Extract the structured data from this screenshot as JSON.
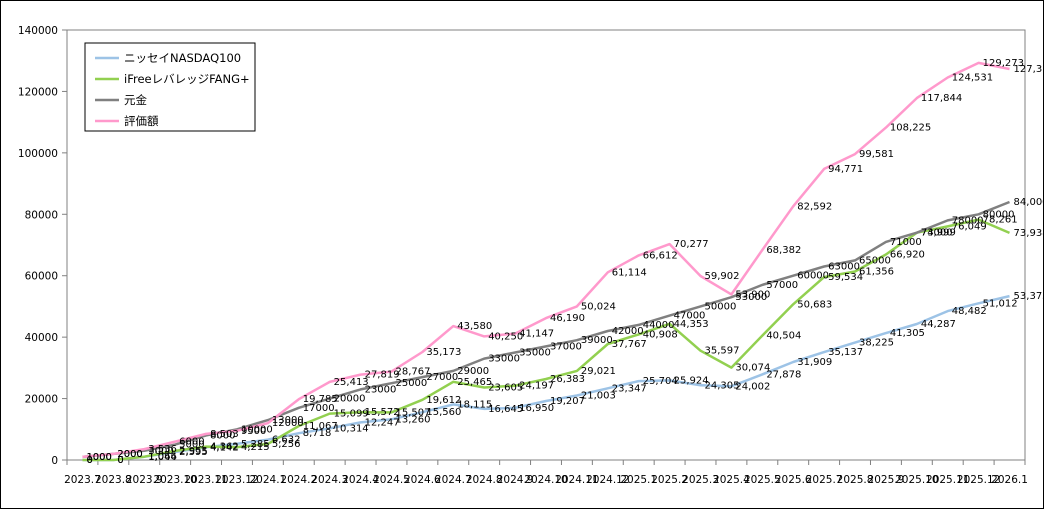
{
  "chart_data": {
    "type": "line",
    "title": "",
    "xlabel": "",
    "ylabel": "",
    "ylim": [
      0,
      140000
    ],
    "yticks": [
      0,
      20000,
      40000,
      60000,
      80000,
      100000,
      120000,
      140000
    ],
    "grid": false,
    "legend_position": "top-left",
    "categories": [
      "2023.7",
      "2023.8",
      "2023.9",
      "2023.10",
      "2023.11",
      "2023.12",
      "2024.1",
      "2024.2",
      "2024.3",
      "2024.4",
      "2024.5",
      "2024.6",
      "2024.7",
      "2024.8",
      "2024.9",
      "2024.10",
      "2024.11",
      "2024.12",
      "2025.1",
      "2025.2",
      "2025.3",
      "2025.4",
      "2025.5",
      "2025.6",
      "2025.7",
      "2025.8",
      "2025.9",
      "2025.10",
      "2025.11",
      "2025.12",
      "2026.1"
    ],
    "x_tick_labels": [
      "2023.7",
      "2023.8",
      "2023.9",
      "2023.10",
      "2023.11",
      "2023.12",
      "2024.1",
      "2024.2",
      "2024.3",
      "2024.4",
      "2024.5",
      "2024.6",
      "2024.7",
      "2024.8",
      "2024.9",
      "2024.10",
      "2024.11",
      "2024.12",
      "2025.1",
      "2025.2",
      "2025.3",
      "2025.4",
      "2025.5",
      "2025.6",
      "2025.7",
      "2025.8",
      "2025.9",
      "2025.10",
      "2025.11",
      "2025.12",
      "2026.1"
    ],
    "series": [
      {
        "name": "ニッセイNASDAQ100",
        "color": "#9dc3e6",
        "values": [
          0,
          0,
          1044,
          2595,
          4142,
          5285,
          6632,
          8718,
          10314,
          12247,
          13260,
          15560,
          18115,
          16645,
          16950,
          19207,
          21003,
          23347,
          25704,
          25924,
          24305,
          24002,
          27878,
          31909,
          35137,
          38225,
          41305,
          44287,
          48482,
          51012,
          53375
        ],
        "labels": [
          "0",
          "0",
          "1,044",
          "2,595",
          "4,142",
          "5,285",
          "6,632",
          "8,718",
          "10,314",
          "12,247",
          "13,260",
          "15,560",
          "18,115",
          "16,645",
          "16,950",
          "19,207",
          "21,003",
          "23,347",
          "25,704",
          "25,924",
          "24,305",
          "24,002",
          "27,878",
          "31,909",
          "35,137",
          "38,225",
          "41,305",
          "44,287",
          "48,482",
          "51,012",
          "53,375"
        ]
      },
      {
        "name": "iFreeレバレッジFANG+",
        "color": "#92d050",
        "values": [
          0,
          0,
          1066,
          2955,
          4362,
          4215,
          5256,
          11067,
          15099,
          15572,
          15507,
          19612,
          25465,
          23605,
          24197,
          26383,
          29021,
          37767,
          40908,
          44353,
          35597,
          30074,
          40504,
          50683,
          59534,
          61356,
          66920,
          73999,
          76049,
          78261,
          73938
        ],
        "labels": [
          "0",
          "0",
          "1,066",
          "2,955",
          "4,362",
          "4,215",
          "5,256",
          "11,067",
          "15,099",
          "15,572",
          "15,507",
          "19,612",
          "25,465",
          "23,605",
          "24,197",
          "26,383",
          "29,021",
          "37,767",
          "40,908",
          "44,353",
          "35,597",
          "30,074",
          "40,504",
          "50,683",
          "59,534",
          "61,356",
          "66,920",
          "73,999",
          "76,049",
          "78,261",
          "73,938"
        ]
      },
      {
        "name": "元金",
        "color": "#808080",
        "values": [
          1000,
          2000,
          3000,
          5000,
          8000,
          10000,
          13000,
          17000,
          20000,
          23000,
          25000,
          27000,
          29000,
          33000,
          35000,
          37000,
          39000,
          42000,
          44000,
          47000,
          50000,
          53000,
          57000,
          60000,
          63000,
          65000,
          71000,
          74000,
          78000,
          80000,
          84000
        ],
        "labels": [
          "1000",
          "2000",
          "3000",
          "5000",
          "8000",
          "10000",
          "13000",
          "17000",
          "20000",
          "23000",
          "25000",
          "27000",
          "29000",
          "33000",
          "35000",
          "37000",
          "39000",
          "42000",
          "44000",
          "47000",
          "50000",
          "53000",
          "57000",
          "60000",
          "63000",
          "65000",
          "71000",
          "74000",
          "78000",
          "80000",
          "84,000"
        ]
      },
      {
        "name": "評価額",
        "color": "#ff99cc",
        "values": [
          1000,
          2000,
          3536,
          6000,
          8503,
          9500,
          12000,
          19785,
          25413,
          27819,
          28767,
          35173,
          43580,
          40250,
          41147,
          46190,
          50024,
          61114,
          66612,
          70277,
          59902,
          53900,
          68382,
          82592,
          94771,
          99581,
          108225,
          117844,
          124531,
          129273,
          127313
        ],
        "labels": [
          "1000",
          "2000",
          "3,536",
          "6000",
          "8,503",
          "9500",
          "12000",
          "19,785",
          "25,413",
          "27,819",
          "28,767",
          "35,173",
          "43,580",
          "40,250",
          "41,147",
          "46,190",
          "50,024",
          "61,114",
          "66,612",
          "70,277",
          "59,902",
          "53,900",
          "68,382",
          "82,592",
          "94,771",
          "99,581",
          "108,225",
          "117,844",
          "124,531",
          "129,273",
          "127,313"
        ]
      }
    ]
  }
}
